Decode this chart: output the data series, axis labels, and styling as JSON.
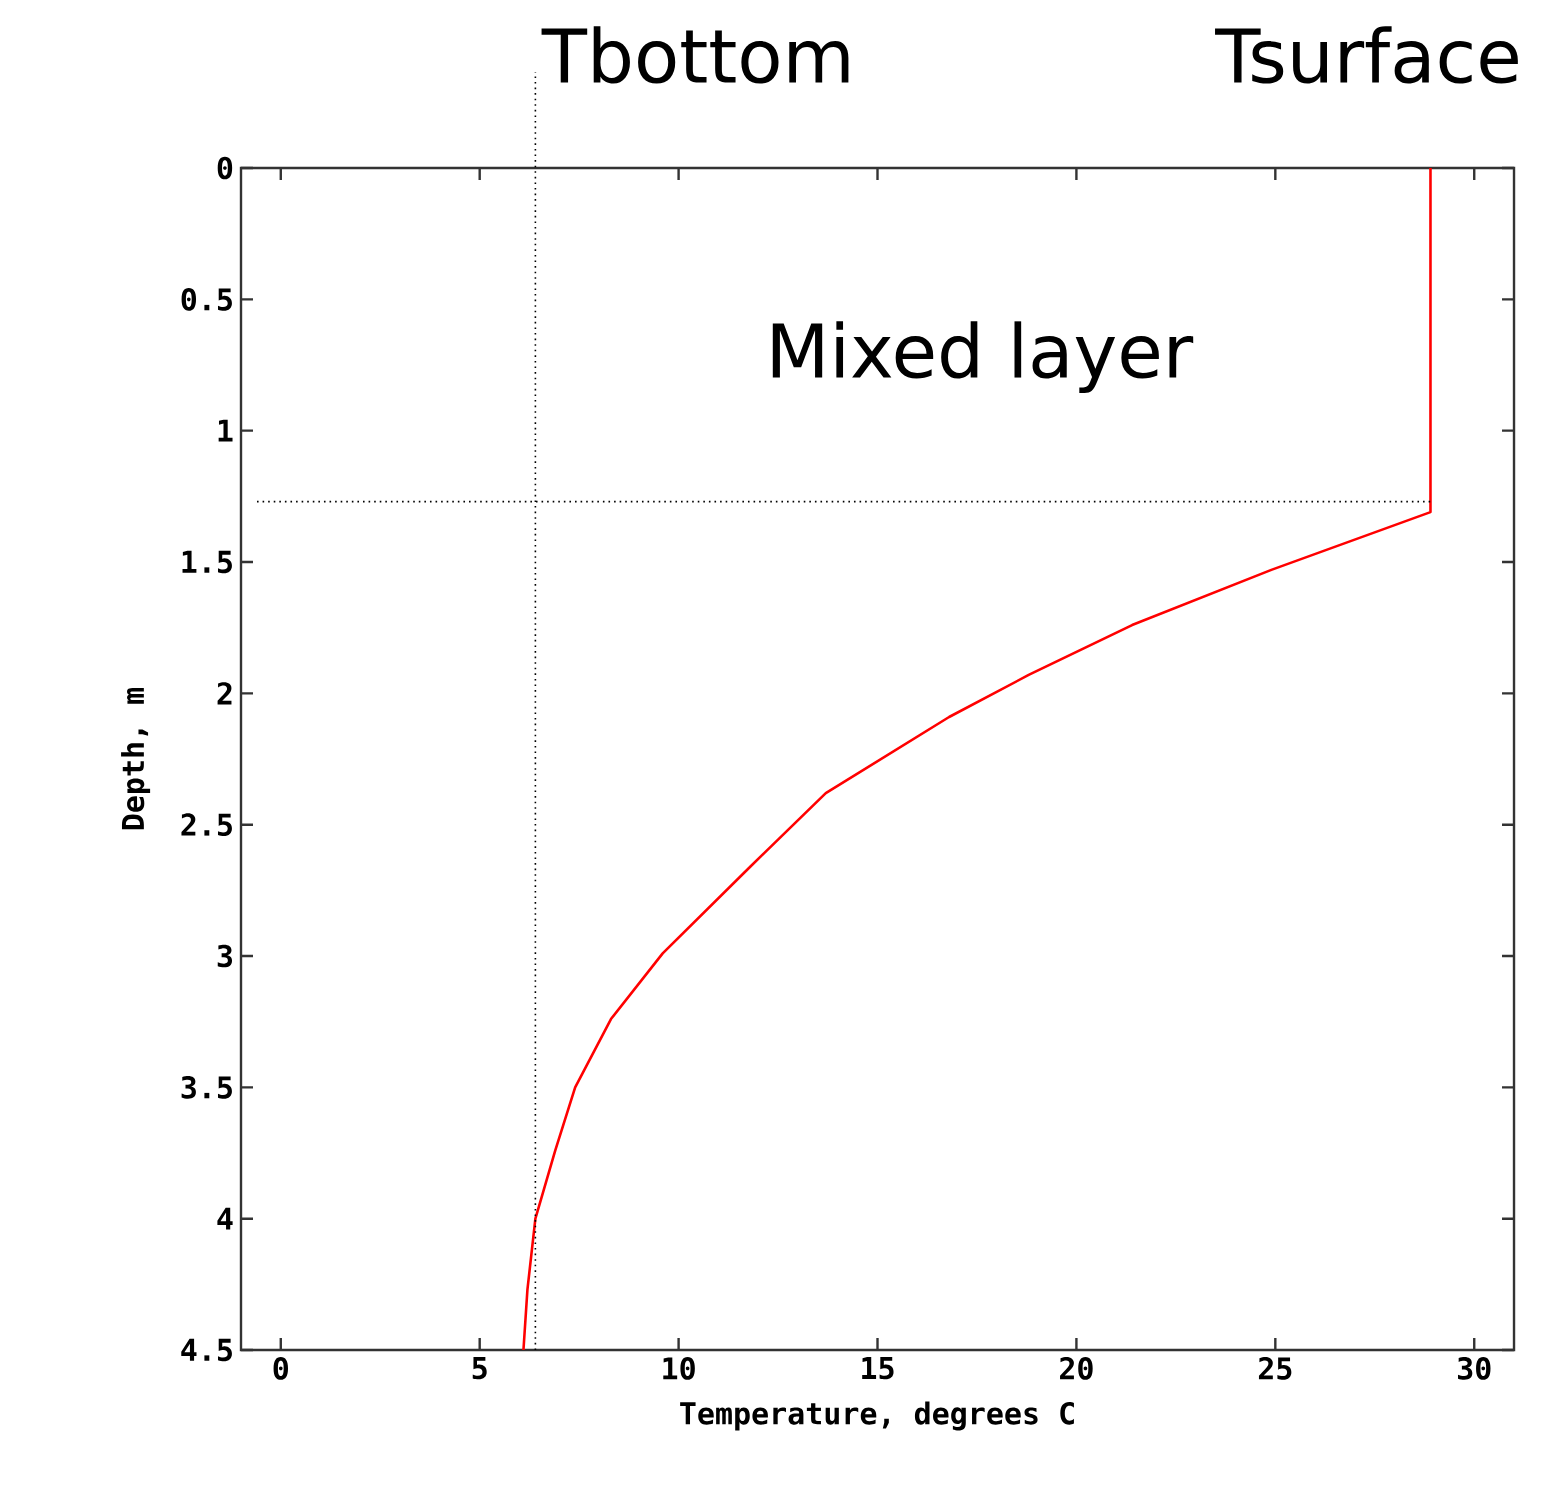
{
  "chart_data": {
    "type": "line",
    "xlabel": "Temperature, degrees C",
    "ylabel": "Depth, m",
    "xlim": [
      -1,
      31
    ],
    "ylim": [
      4.5,
      0
    ],
    "xticks": [
      0,
      5,
      10,
      15,
      20,
      25,
      30
    ],
    "yticks": [
      0,
      0.5,
      1,
      1.5,
      2,
      2.5,
      3,
      3.5,
      4,
      4.5
    ],
    "x": [
      28.9,
      28.9,
      24.9,
      21.4,
      18.8,
      16.8,
      13.7,
      11.8,
      9.6,
      8.3,
      7.4,
      6.9,
      6.4,
      6.2,
      6.1
    ],
    "series": [
      {
        "color": "#ff0000",
        "values": [
          0,
          1.31,
          1.53,
          1.74,
          1.93,
          2.09,
          2.38,
          2.66,
          2.99,
          3.24,
          3.5,
          3.74,
          4.0,
          4.27,
          4.5
        ]
      }
    ],
    "ref_lines": [
      {
        "axis": "x",
        "value": 6.4,
        "line_style": "dotted",
        "color": "#000000"
      },
      {
        "axis": "y",
        "value": 1.27,
        "line_style": "dotted",
        "color": "#000000"
      }
    ],
    "annotations": [
      {
        "text": "Tbottom",
        "x": 6.4,
        "y": 0
      },
      {
        "text": "Tsurface",
        "x": 28.9,
        "y": 0
      },
      "Mixed layer"
    ],
    "marker": "none",
    "line_style": "solid"
  }
}
